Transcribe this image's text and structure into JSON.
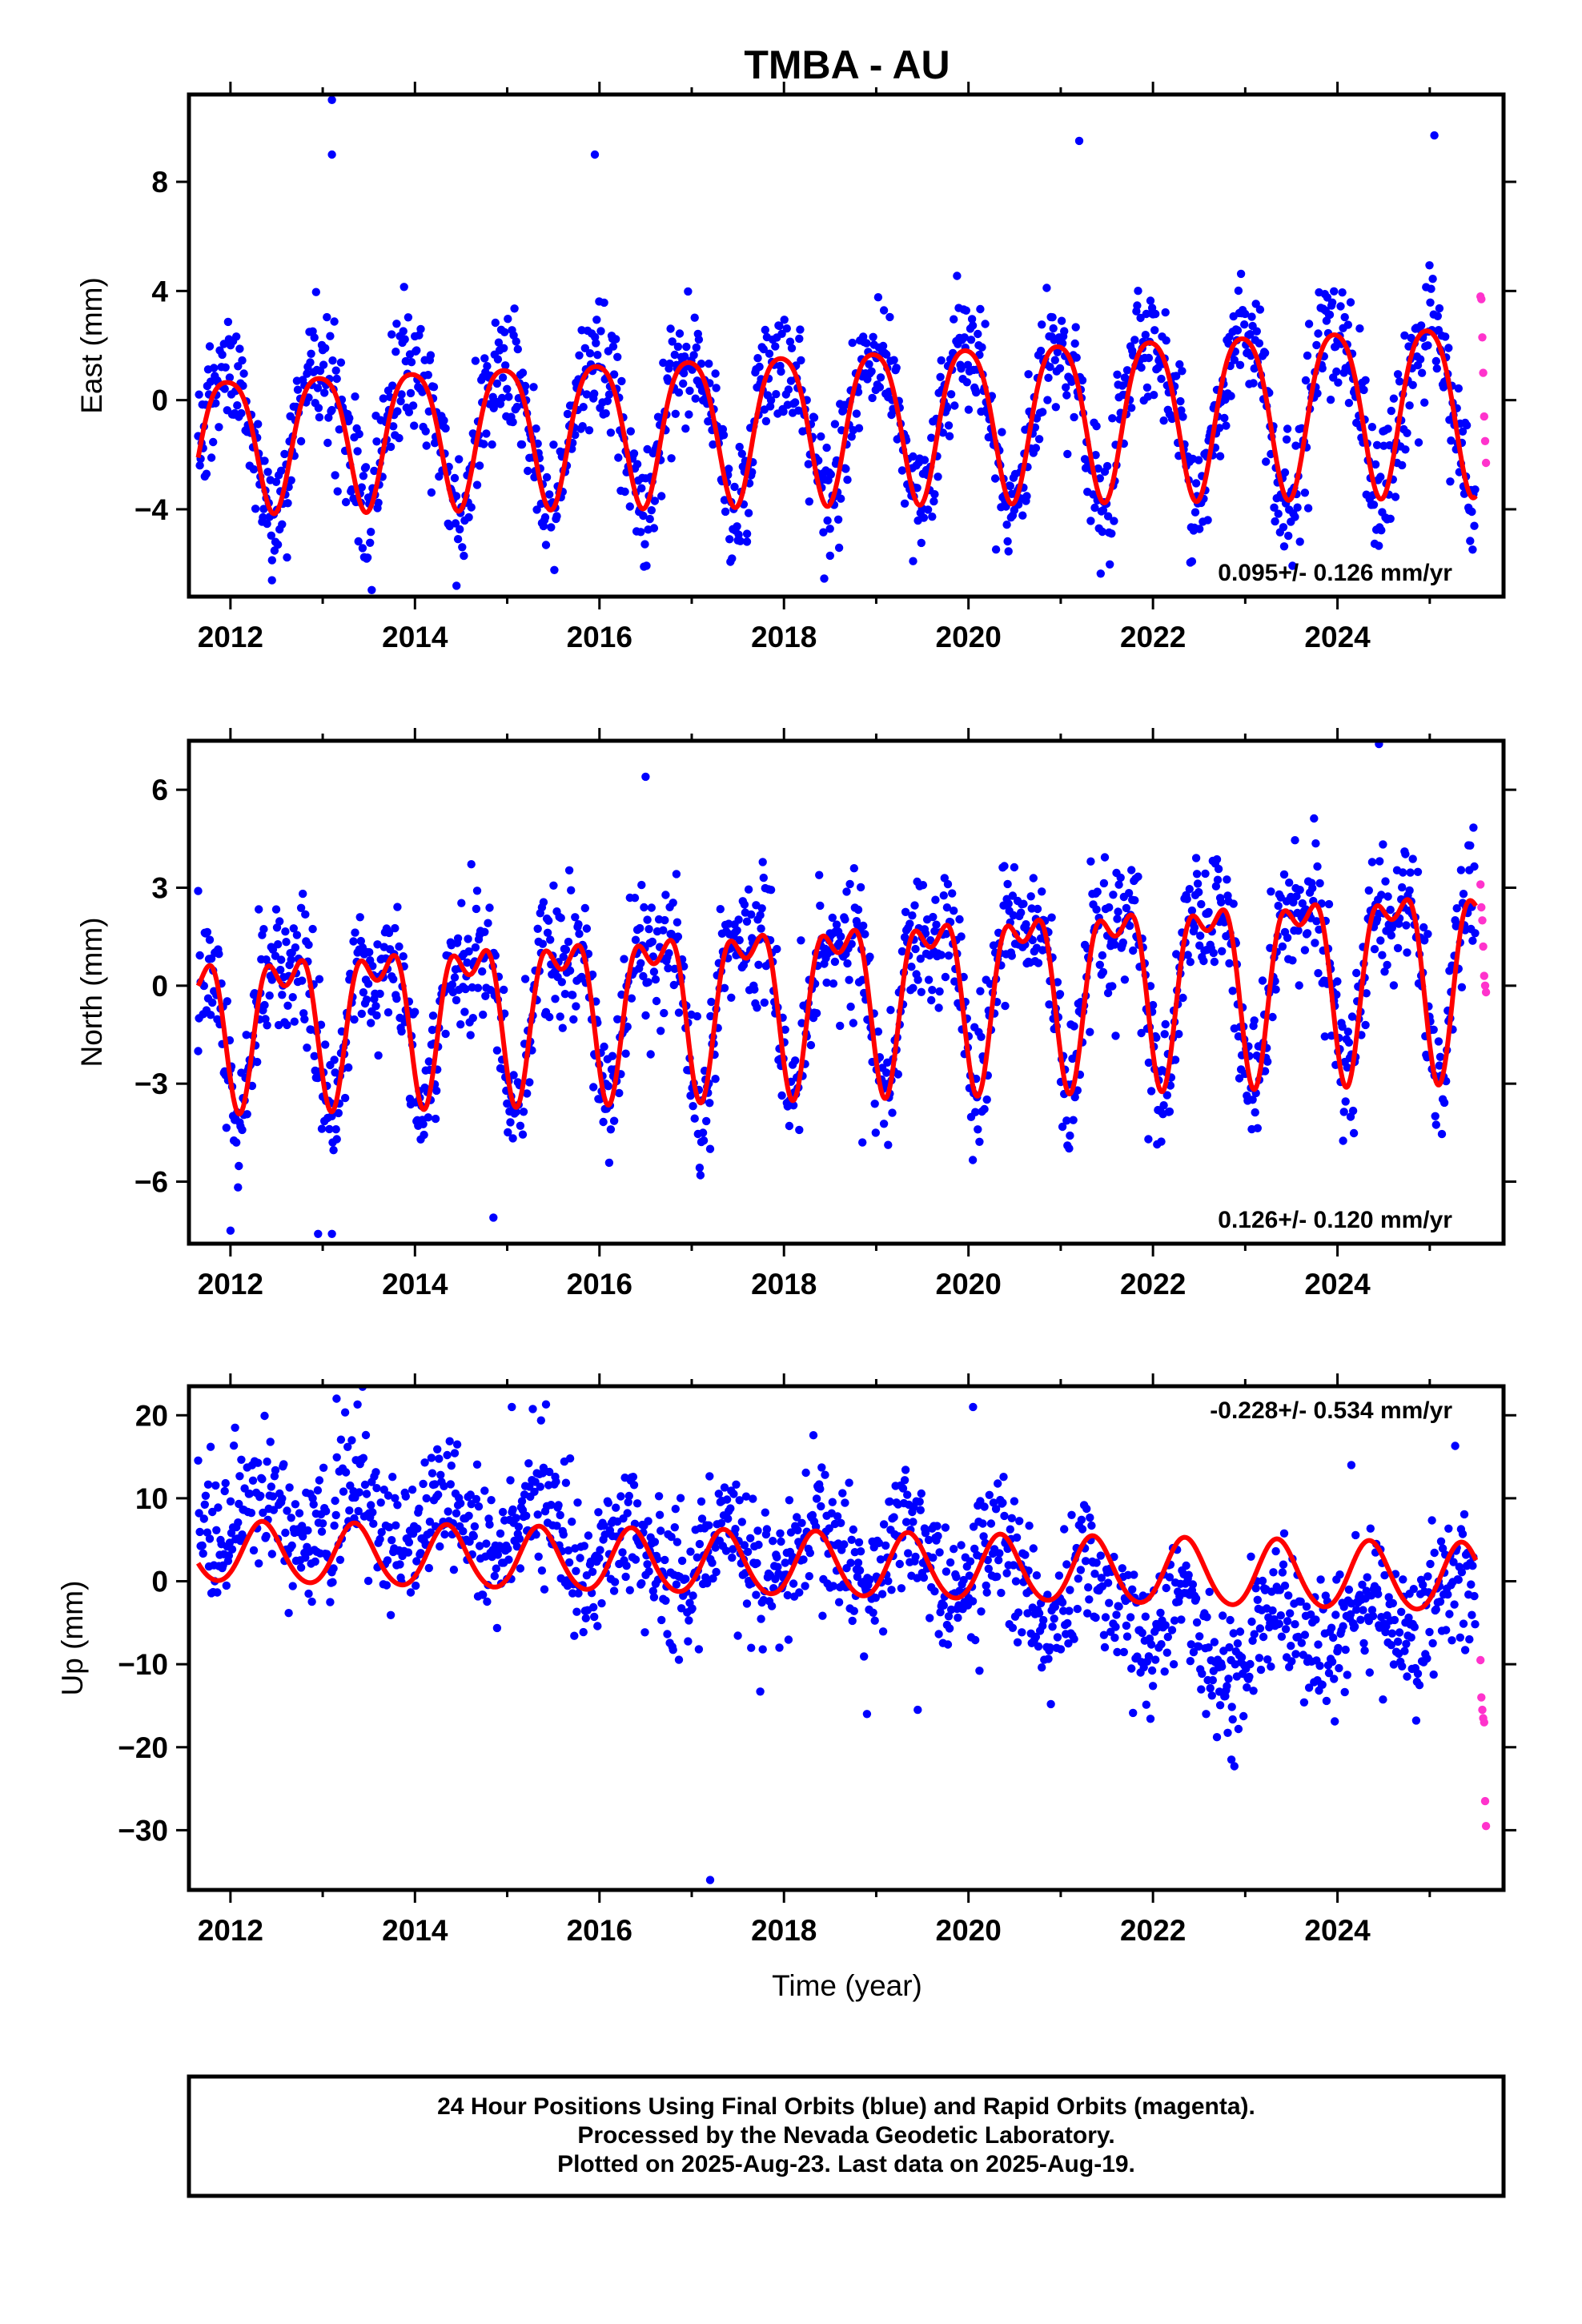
{
  "title": "TMBA - AU",
  "xlabel": "Time (year)",
  "footer": {
    "line1": "24 Hour Positions Using Final Orbits (blue) and Rapid Orbits (magenta).",
    "line2": "Processed by the Nevada Geodetic Laboratory.",
    "line3": "Plotted on 2025-Aug-23. Last data on 2025-Aug-19."
  },
  "colors": {
    "final": "#0000ff",
    "rapid": "#ff33cc",
    "fit": "#ff0000",
    "frame": "#000000"
  },
  "chart_data": [
    {
      "type": "scatter",
      "panel": "east",
      "ylabel": "East (mm)",
      "rate_text": "0.095+/- 0.126 mm/yr",
      "rate_position": "bottom-right",
      "xlim": [
        2011.55,
        2025.8
      ],
      "ylim": [
        -7.2,
        11.2
      ],
      "xticks": [
        2012,
        2014,
        2016,
        2018,
        2020,
        2022,
        2024
      ],
      "yticks": [
        -4,
        0,
        4,
        8
      ],
      "ytick_labels": [
        "−4",
        "0",
        "4",
        "8"
      ],
      "x_start": 2011.65,
      "x_end": 2025.5,
      "x_step": 0.009,
      "model": {
        "rate": 0.095,
        "offset": -0.7,
        "annual_a": [
          2.4,
          3.1
        ],
        "annual_phase": 0.72,
        "semi_a": [
          0.45,
          0.45
        ],
        "semi_phase": 0.1
      },
      "noise_sd": 1.15,
      "outliers": [
        {
          "x": 2013.1,
          "y": 11.0
        },
        {
          "x": 2013.1,
          "y": 9.0
        },
        {
          "x": 2015.95,
          "y": 9.0
        },
        {
          "x": 2021.2,
          "y": 9.5
        },
        {
          "x": 2025.05,
          "y": 9.7
        },
        {
          "x": 2014.45,
          "y": -6.8
        },
        {
          "x": 2012.45,
          "y": -6.6
        },
        {
          "x": 2019.4,
          "y": -5.9
        },
        {
          "x": 2018.5,
          "y": -5.7
        },
        {
          "x": 2017.6,
          "y": -4.9
        }
      ],
      "rapid": [
        {
          "x": 2025.55,
          "y": 3.8
        },
        {
          "x": 2025.56,
          "y": 3.7
        },
        {
          "x": 2025.57,
          "y": 2.3
        },
        {
          "x": 2025.58,
          "y": 1.0
        },
        {
          "x": 2025.59,
          "y": -0.6
        },
        {
          "x": 2025.6,
          "y": -1.5
        },
        {
          "x": 2025.61,
          "y": -2.3
        }
      ]
    },
    {
      "type": "scatter",
      "panel": "north",
      "ylabel": "North (mm)",
      "rate_text": "0.126+/- 0.120 mm/yr",
      "rate_position": "bottom-right",
      "xlim": [
        2011.55,
        2025.8
      ],
      "ylim": [
        -7.9,
        7.5
      ],
      "xticks": [
        2012,
        2014,
        2016,
        2018,
        2020,
        2022,
        2024
      ],
      "yticks": [
        -6,
        -3,
        0,
        3,
        6
      ],
      "ytick_labels": [
        "−6",
        "−3",
        "0",
        "3",
        "6"
      ],
      "x_start": 2011.65,
      "x_end": 2025.5,
      "x_step": 0.009,
      "model": {
        "rate": 0.126,
        "offset": -0.1,
        "annual_a": [
          1.9,
          2.6
        ],
        "annual_phase": 0.35,
        "semi_a": [
          1.1,
          1.2
        ],
        "semi_phase": 0.22
      },
      "noise_sd": 1.0,
      "outliers": [
        {
          "x": 2011.65,
          "y": 2.9
        },
        {
          "x": 2012.0,
          "y": -7.5
        },
        {
          "x": 2012.95,
          "y": -7.6
        },
        {
          "x": 2013.1,
          "y": -7.6
        },
        {
          "x": 2014.85,
          "y": -7.1
        },
        {
          "x": 2017.2,
          "y": -5.0
        },
        {
          "x": 2018.85,
          "y": -4.8
        },
        {
          "x": 2021.95,
          "y": -4.7
        },
        {
          "x": 2024.45,
          "y": 7.4
        },
        {
          "x": 2016.5,
          "y": 6.4
        }
      ],
      "rapid": [
        {
          "x": 2025.55,
          "y": 3.1
        },
        {
          "x": 2025.56,
          "y": 2.4
        },
        {
          "x": 2025.57,
          "y": 2.0
        },
        {
          "x": 2025.58,
          "y": 1.2
        },
        {
          "x": 2025.59,
          "y": 0.3
        },
        {
          "x": 2025.6,
          "y": 0.0
        },
        {
          "x": 2025.61,
          "y": -0.2
        }
      ]
    },
    {
      "type": "scatter",
      "panel": "up",
      "ylabel": "Up (mm)",
      "rate_text": "-0.228+/- 0.534 mm/yr",
      "rate_position": "top-right",
      "xlim": [
        2011.55,
        2025.8
      ],
      "ylim": [
        -37.2,
        23.5
      ],
      "xticks": [
        2012,
        2014,
        2016,
        2018,
        2020,
        2022,
        2024
      ],
      "yticks": [
        -30,
        -20,
        -10,
        0,
        10,
        20
      ],
      "ytick_labels": [
        "−30",
        "−20",
        "−10",
        "0",
        "10",
        "20"
      ],
      "x_start": 2011.65,
      "x_end": 2025.5,
      "x_step": 0.009,
      "model": {
        "rate": -0.228,
        "offset": 1.9,
        "annual_a": [
          3.6,
          4.1
        ],
        "annual_phase": 0.1,
        "semi_a": [
          0.3,
          0.3
        ],
        "semi_phase": 0.2
      },
      "resid_trend": [
        {
          "x": 2011.65,
          "y": 4.0
        },
        {
          "x": 2013.5,
          "y": 4.5
        },
        {
          "x": 2015.0,
          "y": 4.0
        },
        {
          "x": 2016.5,
          "y": 0.5
        },
        {
          "x": 2017.5,
          "y": 1.0
        },
        {
          "x": 2019.5,
          "y": 1.0
        },
        {
          "x": 2020.5,
          "y": -1.0
        },
        {
          "x": 2021.5,
          "y": -3.5
        },
        {
          "x": 2022.6,
          "y": -9.0
        },
        {
          "x": 2023.5,
          "y": -7.0
        },
        {
          "x": 2024.5,
          "y": -5.0
        },
        {
          "x": 2025.5,
          "y": -2.0
        }
      ],
      "noise_sd": 4.2,
      "outliers": [
        {
          "x": 2013.15,
          "y": 22.0
        },
        {
          "x": 2015.05,
          "y": 21.0
        },
        {
          "x": 2017.2,
          "y": -36.0
        },
        {
          "x": 2018.9,
          "y": -16.0
        },
        {
          "x": 2019.45,
          "y": -15.5
        },
        {
          "x": 2024.15,
          "y": 14.0
        },
        {
          "x": 2022.85,
          "y": -21.5
        },
        {
          "x": 2020.05,
          "y": 21.0
        },
        {
          "x": 2012.05,
          "y": 18.5
        }
      ],
      "rapid": [
        {
          "x": 2025.55,
          "y": -9.5
        },
        {
          "x": 2025.56,
          "y": -14.0
        },
        {
          "x": 2025.57,
          "y": -15.5
        },
        {
          "x": 2025.58,
          "y": -16.5
        },
        {
          "x": 2025.59,
          "y": -17.0
        },
        {
          "x": 2025.6,
          "y": -26.5
        },
        {
          "x": 2025.61,
          "y": -29.5
        }
      ]
    }
  ]
}
